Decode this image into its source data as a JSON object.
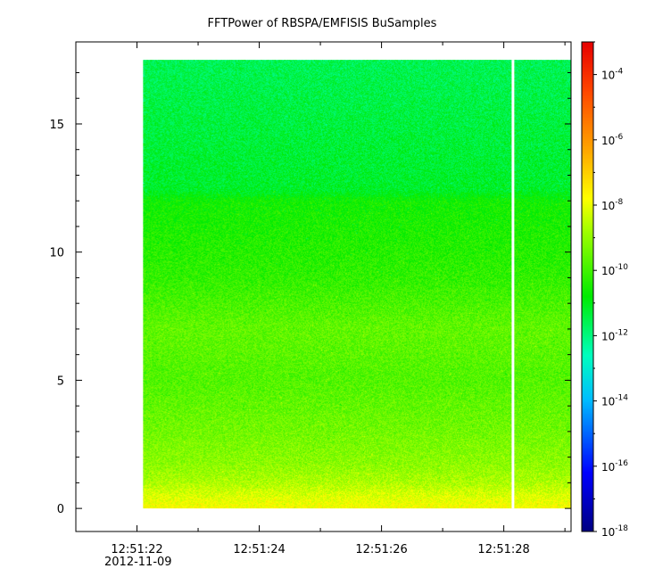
{
  "chart_data": {
    "type": "heatmap",
    "title": "FFTPower of RBSPA/EMFISIS  BuSamples",
    "xlabel": "",
    "ylabel": "",
    "x_date": "2012-11-09",
    "x_range": [
      "12:51:21",
      "12:51:29.1"
    ],
    "x_major_ticks": [
      "12:51:22",
      "12:51:24",
      "12:51:26",
      "12:51:28"
    ],
    "x_minor_ticks": [
      "12:51:21",
      "12:51:23",
      "12:51:25",
      "12:51:27",
      "12:51:29"
    ],
    "y_range": [
      -0.9,
      18.2
    ],
    "y_ticks": [
      0,
      5,
      10,
      15
    ],
    "data_x_range": [
      "12:51:22.1",
      "12:51:29.1"
    ],
    "data_y_range": [
      0,
      17.5
    ],
    "data_gap_at": "12:51:28.15",
    "colorbar": {
      "scale": "log",
      "range": [
        "1e-18",
        "1e-3"
      ],
      "colormap": "rainbow (dark blue → blue → cyan → green → yellow → orange → red)",
      "tick_labels": [
        {
          "base": "10",
          "exp": "-4",
          "log": -4
        },
        {
          "base": "10",
          "exp": "-6",
          "log": -6
        },
        {
          "base": "10",
          "exp": "-8",
          "log": -8
        },
        {
          "base": "10",
          "exp": "-10",
          "log": -10
        },
        {
          "base": "10",
          "exp": "-12",
          "log": -12
        },
        {
          "base": "10",
          "exp": "-14",
          "log": -14
        },
        {
          "base": "10",
          "exp": "-16",
          "log": -16
        },
        {
          "base": "10",
          "exp": "-18",
          "log": -18
        }
      ]
    },
    "power_profile_log10": [
      {
        "y": 0.0,
        "v": -7.8
      },
      {
        "y": 0.5,
        "v": -8.2
      },
      {
        "y": 1.0,
        "v": -8.7
      },
      {
        "y": 1.8,
        "v": -9.1
      },
      {
        "y": 3.0,
        "v": -9.4
      },
      {
        "y": 5.0,
        "v": -9.8
      },
      {
        "y": 7.0,
        "v": -9.6
      },
      {
        "y": 9.0,
        "v": -10.2
      },
      {
        "y": 12.0,
        "v": -10.6
      },
      {
        "y": 12.4,
        "v": -11.2
      },
      {
        "y": 15.0,
        "v": -11.4
      },
      {
        "y": 17.5,
        "v": -11.6
      }
    ],
    "grid": false
  }
}
